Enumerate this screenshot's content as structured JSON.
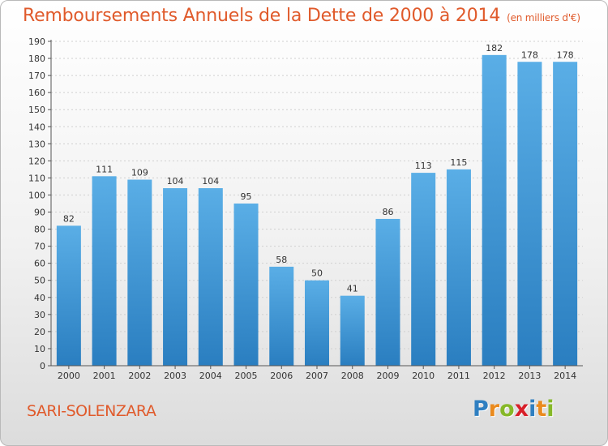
{
  "colors": {
    "accent": "#e05a2b",
    "bar_light": "#5aaee6",
    "bar_dark": "#2a7ec0",
    "axis": "#555555",
    "grid": "#d0d0d0"
  },
  "header": {
    "title": "Remboursements Annuels de la Dette de 2000 à 2014",
    "unit": "(en milliers d'€)"
  },
  "footer": {
    "commune": "SARI-SOLENZARA",
    "logo_letters": [
      {
        "ch": "P",
        "color": "#2f7fc1"
      },
      {
        "ch": "r",
        "color": "#ea8a1e"
      },
      {
        "ch": "o",
        "color": "#86b828"
      },
      {
        "ch": "x",
        "color": "#d8202a"
      },
      {
        "ch": "i",
        "color": "#2f7fc1"
      },
      {
        "ch": "t",
        "color": "#ea8a1e"
      },
      {
        "ch": "i",
        "color": "#86b828"
      }
    ]
  },
  "chart_data": {
    "type": "bar",
    "title": "Remboursements Annuels de la Dette de 2000 à 2014",
    "ylabel": "en milliers d'€",
    "xlabel": "",
    "categories": [
      "2000",
      "2001",
      "2002",
      "2003",
      "2004",
      "2005",
      "2006",
      "2007",
      "2008",
      "2009",
      "2010",
      "2011",
      "2012",
      "2013",
      "2014"
    ],
    "values": [
      82,
      111,
      109,
      104,
      104,
      95,
      58,
      50,
      41,
      86,
      113,
      115,
      182,
      178,
      178
    ],
    "ylim": [
      0,
      190
    ],
    "ytick_step": 10,
    "grid": true,
    "legend": "none"
  }
}
